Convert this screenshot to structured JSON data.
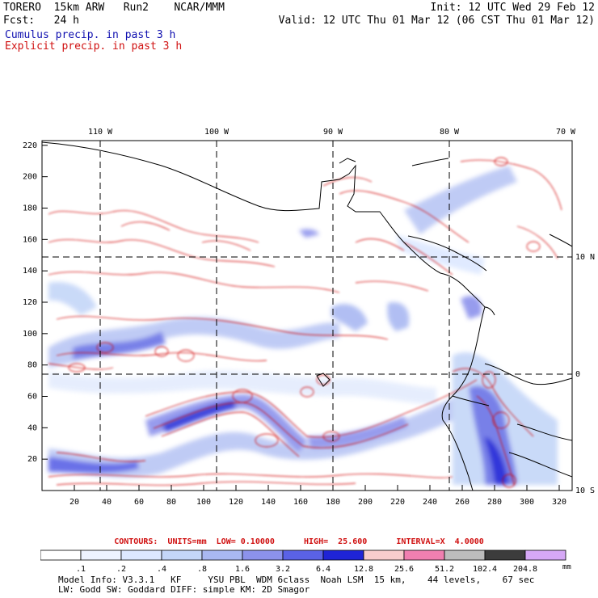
{
  "header": {
    "line1_left": "TORERO  15km ARW   Run2    NCAR/MMM",
    "line1_right": "Init: 12 UTC Wed 29 Feb 12",
    "line2_left": "Fcst:   24 h",
    "line2_right": "Valid: 12 UTC Thu 01 Mar 12 (06 CST Thu 01 Mar 12)",
    "cumulus_label": "Cumulus precip. in past 3 h",
    "explicit_label": "Explicit precip. in past 3 h"
  },
  "map": {
    "x_ticks": [
      "20",
      "40",
      "60",
      "80",
      "100",
      "120",
      "140",
      "160",
      "180",
      "200",
      "220",
      "240",
      "260",
      "280",
      "300",
      "320"
    ],
    "y_ticks": [
      "20",
      "40",
      "60",
      "80",
      "100",
      "120",
      "140",
      "160",
      "180",
      "200",
      "220"
    ],
    "lon_labels": [
      "110 W",
      "100 W",
      "90 W",
      "80 W",
      "70 W"
    ],
    "lat_labels": [
      "10 N",
      "0",
      "10 S"
    ]
  },
  "contours_line": "CONTOURS:  UNITS=mm  LOW= 0.10000      HIGH=  25.600      INTERVAL=X  4.0000",
  "legend": {
    "labels": [
      ".1",
      ".2",
      ".4",
      ".8",
      "1.6",
      "3.2",
      "6.4",
      "12.8",
      "25.6",
      "51.2",
      "102.4",
      "204.8"
    ],
    "colors": [
      "#ffffff",
      "#eef3ff",
      "#dde8ff",
      "#c4d6f8",
      "#a9b8f2",
      "#8c92ec",
      "#5a62e6",
      "#1f24d6",
      "#f8cccc",
      "#f07fb0",
      "#bdbdbd",
      "#3c3c3c",
      "#d6a8f6"
    ],
    "unit": "mm"
  },
  "model_info": {
    "line1": "Model Info: V3.3.1   KF     YSU PBL  WDM 6class  Noah LSM  15 km,    44 levels,    67 sec",
    "line2": "LW: Godd SW: Goddard DIFF: simple KM: 2D Smagor"
  }
}
